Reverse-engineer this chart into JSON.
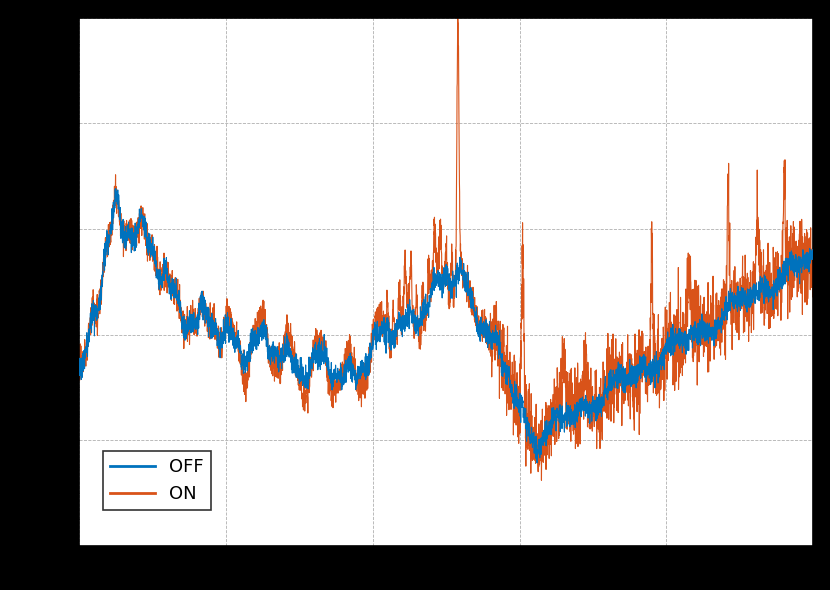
{
  "title": "",
  "xlabel": "",
  "ylabel": "",
  "line_off_color": "#0072BD",
  "line_on_color": "#D95319",
  "line_width": 0.8,
  "background_color": "#ffffff",
  "figure_bg_color": "#000000",
  "axes_bg_color": "#ffffff",
  "grid_color": "#b0b0b0",
  "legend_labels": [
    "OFF",
    "ON"
  ],
  "legend_loc": "lower left",
  "freq_min": 0,
  "freq_max": 500,
  "ylim_min": -160,
  "ylim_max": -60
}
